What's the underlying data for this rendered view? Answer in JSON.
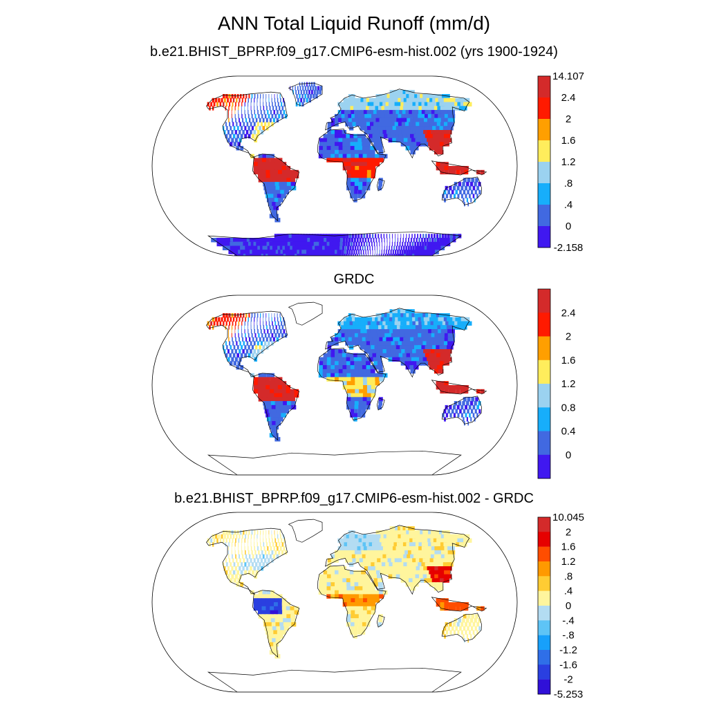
{
  "title": "ANN Total Liquid Runoff (mm/d)",
  "chart_data": [
    {
      "type": "heatmap",
      "projection": "robinson",
      "title": "b.e21.BHIST_BPRP.f09_g17.CMIP6-esm-hist.002 (yrs 1900-1924)",
      "colorbar": {
        "labels": [
          "14.107",
          "2.4",
          "2",
          "1.6",
          "1.2",
          ".8",
          ".4",
          "0",
          "-2.158"
        ],
        "colors": [
          "#d42a2a",
          "#ff1a00",
          "#ff9f00",
          "#ffed5c",
          "#9bd2f0",
          "#17aefb",
          "#4169e1",
          "#4018f0"
        ]
      }
    },
    {
      "type": "heatmap",
      "projection": "robinson",
      "title": "GRDC",
      "colorbar": {
        "labels": [
          "2.4",
          "2",
          "1.6",
          "1.2",
          "0.8",
          "0.4",
          "0"
        ],
        "colors": [
          "#d42a2a",
          "#ff1a00",
          "#ff9f00",
          "#ffed5c",
          "#9bd2f0",
          "#17aefb",
          "#4169e1",
          "#4018f0"
        ]
      }
    },
    {
      "type": "heatmap",
      "projection": "robinson",
      "title": "b.e21.BHIST_BPRP.f09_g17.CMIP6-esm-hist.002 - GRDC",
      "colorbar": {
        "labels": [
          "10.045",
          "2",
          "1.6",
          "1.2",
          ".8",
          ".4",
          "0",
          "-.4",
          "-.8",
          "-1.2",
          "-1.6",
          "-2",
          "-5.253"
        ],
        "colors": [
          "#d42a2a",
          "#e60000",
          "#ff4d00",
          "#ff9900",
          "#ffcc33",
          "#fff59d",
          "#b3dcf2",
          "#5ec4f6",
          "#17a0fb",
          "#2f6fe8",
          "#2a3fe0",
          "#3010d8"
        ]
      }
    }
  ]
}
